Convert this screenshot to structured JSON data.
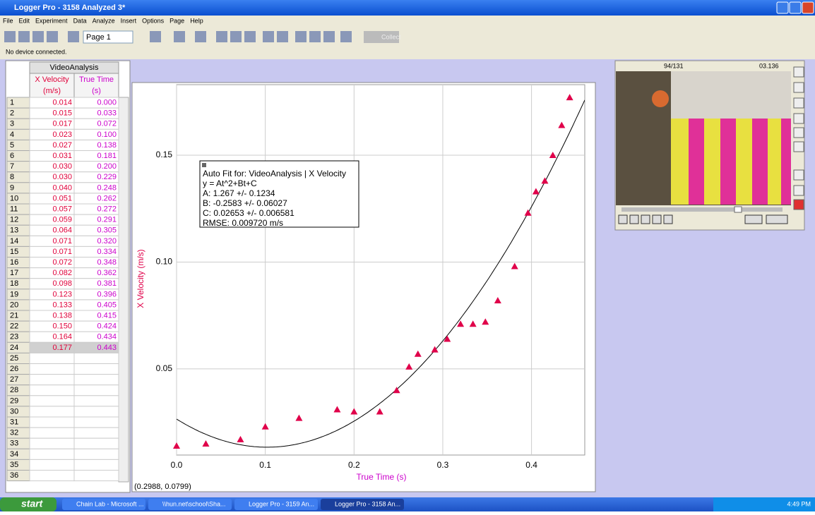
{
  "window": {
    "title": "Logger Pro - 3158 Analyzed 3*"
  },
  "menu": [
    "File",
    "Edit",
    "Experiment",
    "Data",
    "Analyze",
    "Insert",
    "Options",
    "Page",
    "Help"
  ],
  "toolbar": {
    "page": "Page 1",
    "collect": "Collect"
  },
  "status": "No device connected.",
  "table": {
    "title": "VideoAnalysis",
    "columns": [
      {
        "name": "X Velocity",
        "unit": "(m/s)"
      },
      {
        "name": "True Time",
        "unit": "(s)"
      }
    ],
    "row_numbers": [
      1,
      2,
      3,
      4,
      5,
      6,
      7,
      8,
      9,
      10,
      11,
      12,
      13,
      14,
      15,
      16,
      17,
      18,
      19,
      20,
      21,
      22,
      23,
      24,
      25,
      26,
      27,
      28,
      29,
      30,
      31,
      32,
      33,
      34,
      35,
      36
    ],
    "rows": [
      [
        "0.014",
        "0.000"
      ],
      [
        "0.015",
        "0.033"
      ],
      [
        "0.017",
        "0.072"
      ],
      [
        "0.023",
        "0.100"
      ],
      [
        "0.027",
        "0.138"
      ],
      [
        "0.031",
        "0.181"
      ],
      [
        "0.030",
        "0.200"
      ],
      [
        "0.030",
        "0.229"
      ],
      [
        "0.040",
        "0.248"
      ],
      [
        "0.051",
        "0.262"
      ],
      [
        "0.057",
        "0.272"
      ],
      [
        "0.059",
        "0.291"
      ],
      [
        "0.064",
        "0.305"
      ],
      [
        "0.071",
        "0.320"
      ],
      [
        "0.071",
        "0.334"
      ],
      [
        "0.072",
        "0.348"
      ],
      [
        "0.082",
        "0.362"
      ],
      [
        "0.098",
        "0.381"
      ],
      [
        "0.123",
        "0.396"
      ],
      [
        "0.133",
        "0.405"
      ],
      [
        "0.138",
        "0.415"
      ],
      [
        "0.150",
        "0.424"
      ],
      [
        "0.164",
        "0.434"
      ],
      [
        "0.177",
        "0.443"
      ]
    ]
  },
  "chart_data": {
    "type": "scatter",
    "x_label": "True Time (s)",
    "y_label": "X Velocity (m/s)",
    "x": [
      0.0,
      0.033,
      0.072,
      0.1,
      0.138,
      0.181,
      0.2,
      0.229,
      0.248,
      0.262,
      0.272,
      0.291,
      0.305,
      0.32,
      0.334,
      0.348,
      0.362,
      0.381,
      0.396,
      0.405,
      0.415,
      0.424,
      0.434,
      0.443
    ],
    "values": [
      0.014,
      0.015,
      0.017,
      0.023,
      0.027,
      0.031,
      0.03,
      0.03,
      0.04,
      0.051,
      0.057,
      0.059,
      0.064,
      0.071,
      0.071,
      0.072,
      0.082,
      0.098,
      0.123,
      0.133,
      0.138,
      0.15,
      0.164,
      0.177
    ],
    "color": "#e0004a",
    "xlim": [
      0,
      0.46
    ],
    "ylim": [
      0.0097,
      0.183
    ],
    "xticks": [
      {
        "value": 0,
        "label": "0.0"
      },
      0.1,
      0.2,
      0.3,
      0.4
    ],
    "yticks": [
      {
        "value": 0.05,
        "label": "0.05"
      },
      {
        "value": 0.1,
        "label": "0.10"
      },
      {
        "value": 0.15,
        "label": "0.15"
      }
    ],
    "grid": true,
    "fit_coefficients": [
      1.267,
      -0.2583,
      0.02653
    ],
    "fit_color": "#000000",
    "cursor_readout": "(0.2988, 0.0799)"
  },
  "fit_box": {
    "lines": [
      "Auto Fit for: VideoAnalysis | X Velocity",
      "y = At^2+Bt+C",
      "A: 1.267 +/- 0.1234",
      "B: -0.2583 +/- 0.06027",
      "C: 0.02653 +/- 0.006581",
      "RMSE: 0.009720 m/s"
    ]
  },
  "video": {
    "frame": "94/131",
    "time": "03.136"
  },
  "taskbar": {
    "start": "start",
    "items": [
      "Chain Lab - Microsoft ...",
      "\\\\hun.net\\school\\Sha...",
      "Logger Pro - 3159 An...",
      "Logger Pro - 3158 An..."
    ],
    "clock": "4:49 PM"
  }
}
